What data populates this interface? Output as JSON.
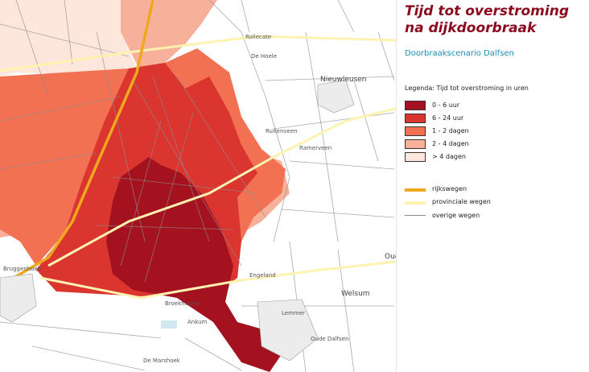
{
  "panel": {
    "title": "Tijd tot overstroming na dijkdoorbraak",
    "scenario": "Doorbraakscenario Dalfsen",
    "legend_title": "Legenda: Tijd tot overstroming in uren"
  },
  "legend": {
    "classes": [
      {
        "label": "0 - 6 uur",
        "color": "#a5121f"
      },
      {
        "label": "6 - 24 uur",
        "color": "#db3530"
      },
      {
        "label": "1 - 2 dagen",
        "color": "#f27152"
      },
      {
        "label": "2 - 4 dagen",
        "color": "#f7b09a"
      },
      {
        "label": "> 4 dagen",
        "color": "#fde6dc"
      }
    ],
    "roads": [
      {
        "label": "rijkswegen",
        "color": "#f0a81e"
      },
      {
        "label": "provinciale wegen",
        "color": "#fdf2b0"
      },
      {
        "label": "overige wegen",
        "color": "#8c8c8c"
      }
    ]
  },
  "map": {
    "place_labels": [
      "Rollecate",
      "De Hoele",
      "Nieuwleusen",
      "Ruitenveen",
      "Ramerveen",
      "Bruggenhoek",
      "Engeland",
      "Welsum",
      "Broekhuizen",
      "Ankum",
      "Lemmer",
      "Oud",
      "De Marshoek",
      "Oude Dalfsen"
    ],
    "colors": {
      "background": "#ffffff",
      "water": "#cfe8f0"
    }
  }
}
